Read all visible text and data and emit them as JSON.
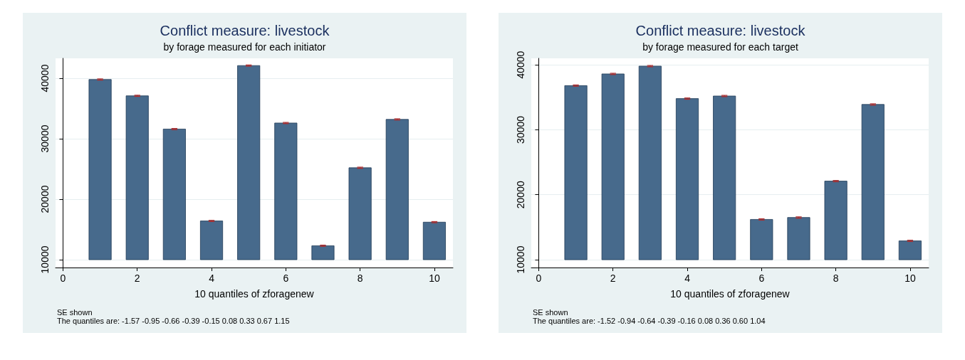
{
  "chart_data": [
    {
      "type": "bar",
      "title": "Conflict measure: livestock",
      "subtitle": "by forage measured for each initiator",
      "xlabel": "10 quantiles of zforagenew",
      "x": [
        1,
        2,
        3,
        4,
        5,
        6,
        7,
        8,
        9,
        10
      ],
      "base": [
        10000,
        10000,
        10000,
        10000,
        10000,
        10000,
        10000,
        10000,
        10000,
        10000
      ],
      "values": [
        29800,
        27100,
        21600,
        6400,
        32100,
        22600,
        2300,
        15200,
        23200,
        6200
      ],
      "errors": [
        100,
        100,
        100,
        100,
        100,
        100,
        100,
        100,
        100,
        100
      ],
      "color": "#476a8c",
      "xlim": [
        -0.2,
        10.5
      ],
      "xticks": [
        0,
        2,
        4,
        6,
        8,
        10
      ],
      "ylim": [
        8700,
        43300
      ],
      "yticks": [
        10000,
        20000,
        30000,
        40000
      ],
      "grid": "y",
      "annotations": [
        "SE shown",
        "The quantiles are: -1.57 -0.95 -0.66 -0.39 -0.15 0.08 0.33 0.67 1.15"
      ]
    },
    {
      "type": "bar",
      "title": "Conflict measure: livestock",
      "subtitle": "by forage measured for each target",
      "xlabel": "10 quantiles of zforagenew",
      "x": [
        1,
        2,
        3,
        4,
        5,
        6,
        7,
        8,
        9,
        10
      ],
      "base": [
        10000,
        10000,
        10000,
        10000,
        10000,
        10000,
        10000,
        10000,
        10000,
        10000
      ],
      "values": [
        26800,
        28600,
        29800,
        24800,
        25200,
        6200,
        6500,
        12100,
        23900,
        2900
      ],
      "errors": [
        100,
        100,
        100,
        100,
        100,
        100,
        100,
        100,
        100,
        100
      ],
      "color": "#476a8c",
      "xlim": [
        -0.2,
        10.5
      ],
      "xticks": [
        0,
        2,
        4,
        6,
        8,
        10
      ],
      "ylim": [
        8800,
        41000
      ],
      "yticks": [
        10000,
        20000,
        30000,
        40000
      ],
      "grid": "y",
      "annotations": [
        "SE shown",
        "The quantiles are: -1.52 -0.94 -0.64 -0.39 -0.16 0.08 0.36 0.60 1.04"
      ]
    }
  ]
}
